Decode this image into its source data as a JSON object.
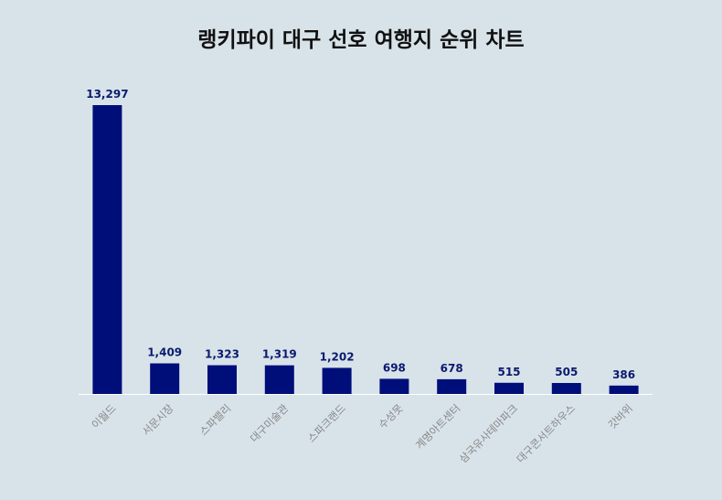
{
  "chart_data": {
    "type": "bar",
    "title": "랭키파이 대구 선호 여행지 순위 차트",
    "categories": [
      "이월드",
      "서문시장",
      "스파밸리",
      "대구미술관",
      "스파크랜드",
      "수성못",
      "계명아트센터",
      "삼국유사테마파크",
      "대구콘서트하우스",
      "갓바위"
    ],
    "values": [
      13297,
      1409,
      1323,
      1319,
      1202,
      698,
      678,
      515,
      505,
      386
    ],
    "value_labels": [
      "13,297",
      "1,409",
      "1,323",
      "1,319",
      "1,202",
      "698",
      "678",
      "515",
      "505",
      "386"
    ],
    "xlabel": "",
    "ylabel": "",
    "ylim": [
      0,
      13297
    ],
    "grid": false,
    "legend": "none",
    "colors": {
      "bar": "#000e7a",
      "value_label": "#0b1a6e",
      "tick_label": "#888888",
      "axis": "#ffffff",
      "background": "#d8e3e9"
    }
  }
}
